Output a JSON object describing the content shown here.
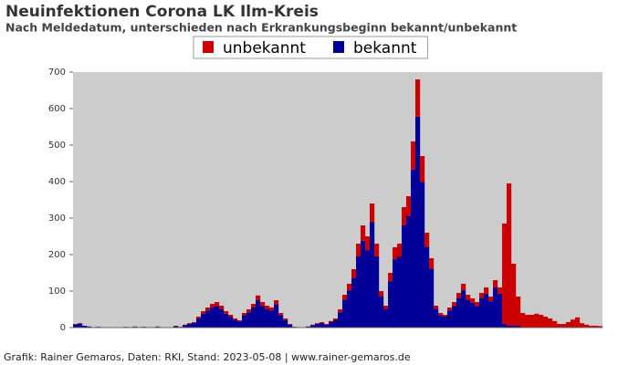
{
  "chart_data": {
    "type": "stacked_bar",
    "title": "Neuinfektionen Corona LK Ilm-Kreis",
    "subtitle": "Nach Meldedatum, unterschieden nach Erkrankungsbeginn bekannt/unbekannt",
    "note": "Grafik: Rainer Gemaros, Daten: RKI, Stand: 2023-05-08 | www.rainer-gemaros.de",
    "legend": "top",
    "ylim": [
      0,
      700
    ],
    "yticks": [
      0,
      100,
      200,
      300,
      400,
      500,
      600,
      700
    ],
    "categories": [
      null,
      null,
      null,
      null,
      null,
      null,
      null,
      null,
      null,
      null,
      null,
      null,
      null,
      null,
      null,
      null,
      null,
      null,
      null,
      null,
      null,
      null,
      null,
      null,
      null,
      null,
      null,
      null,
      null,
      null,
      null,
      null,
      null,
      null,
      null,
      null,
      null,
      null,
      null,
      null,
      null,
      null,
      null,
      null,
      null,
      null,
      null,
      null,
      null,
      null,
      null,
      null,
      null,
      null,
      null,
      null,
      null,
      null,
      null,
      null,
      null,
      null,
      null,
      null,
      null,
      null,
      null,
      null,
      null,
      null,
      null,
      null,
      null,
      null,
      null,
      null,
      null,
      null,
      null,
      null,
      null,
      null,
      null,
      null,
      null,
      null,
      null,
      null,
      null,
      null,
      null,
      null,
      null,
      null,
      null,
      null,
      null,
      null,
      null,
      null,
      null,
      null,
      null,
      null,
      null,
      null,
      null,
      null,
      null,
      null,
      null,
      null,
      null,
      null,
      null,
      null
    ],
    "series": [
      {
        "name": "bekannt",
        "color": "#000099",
        "values": [
          9,
          10,
          5,
          3,
          0,
          2,
          0,
          1,
          0,
          0,
          0,
          1,
          0,
          2,
          0,
          2,
          0,
          0,
          2,
          0,
          1,
          0,
          4,
          2,
          7,
          10,
          13,
          25,
          38,
          47,
          55,
          59,
          51,
          38,
          30,
          21,
          17,
          34,
          42,
          55,
          75,
          59,
          51,
          47,
          64,
          34,
          21,
          8,
          2,
          0,
          1,
          3,
          7,
          10,
          13,
          8,
          15,
          21,
          42,
          76,
          102,
          136,
          195,
          238,
          212,
          289,
          195,
          85,
          51,
          127,
          187,
          195,
          280,
          306,
          433,
          578,
          399,
          221,
          161,
          51,
          34,
          30,
          47,
          59,
          81,
          102,
          76,
          68,
          59,
          81,
          93,
          72,
          110,
          93,
          10,
          5,
          5,
          5,
          0,
          0,
          0,
          0,
          0,
          0,
          0,
          0,
          0,
          0,
          0,
          0,
          0,
          0,
          0,
          0,
          0,
          0
        ]
      },
      {
        "name": "unbekannt",
        "color": "#cc0000",
        "values": [
          1,
          2,
          0,
          0,
          0,
          0,
          0,
          0,
          0,
          0,
          0,
          1,
          0,
          1,
          0,
          0,
          0,
          0,
          1,
          0,
          0,
          0,
          1,
          0,
          1,
          2,
          2,
          5,
          7,
          8,
          10,
          11,
          9,
          7,
          5,
          4,
          3,
          6,
          8,
          10,
          13,
          11,
          9,
          8,
          11,
          6,
          4,
          2,
          0,
          0,
          0,
          0,
          1,
          2,
          2,
          2,
          3,
          4,
          8,
          14,
          18,
          24,
          35,
          42,
          38,
          51,
          35,
          15,
          9,
          23,
          33,
          35,
          50,
          54,
          77,
          102,
          71,
          39,
          29,
          9,
          6,
          5,
          8,
          11,
          14,
          18,
          14,
          12,
          11,
          14,
          17,
          13,
          20,
          17,
          275,
          390,
          170,
          80,
          40,
          35,
          35,
          38,
          35,
          30,
          25,
          18,
          10,
          10,
          15,
          22,
          28,
          12,
          8,
          5,
          5,
          4
        ]
      }
    ]
  }
}
